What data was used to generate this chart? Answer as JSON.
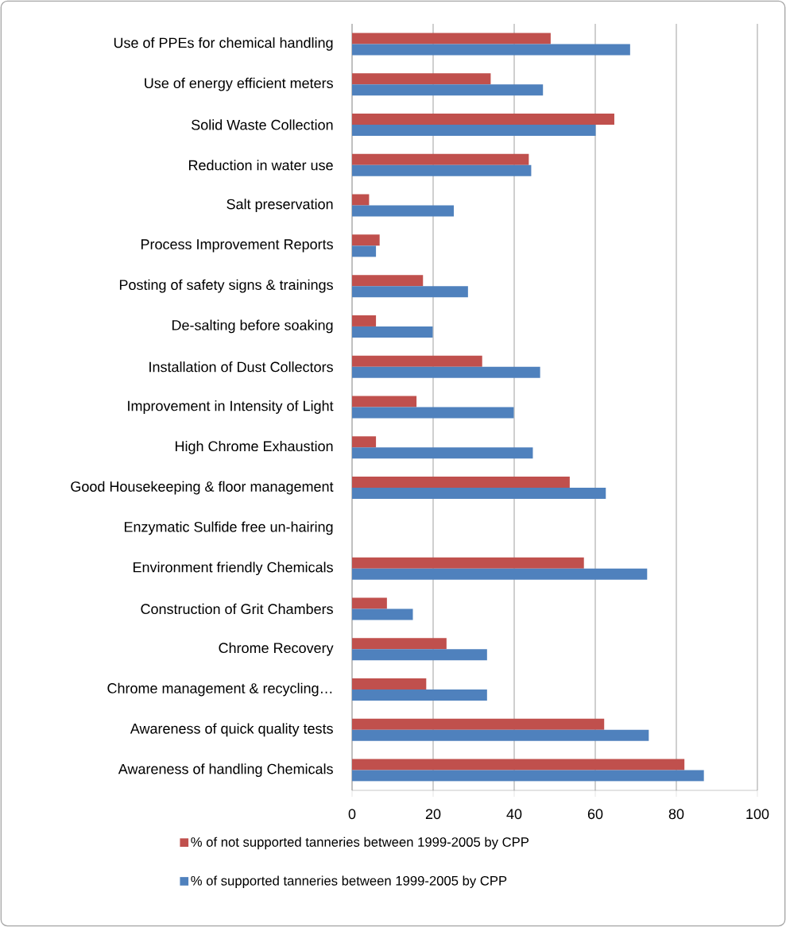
{
  "chart_data": {
    "type": "bar",
    "orientation": "horizontal",
    "categories": [
      "Use of PPEs for chemical handling",
      "Use of energy efficient meters",
      "Solid Waste Collection",
      "Reduction in water use",
      "Salt preservation",
      "Process Improvement Reports",
      "Posting of safety signs & trainings",
      "De-salting before soaking",
      "Installation of Dust Collectors",
      "Improvement in Intensity of Light",
      "High Chrome Exhaustion",
      "Good Housekeeping & floor management",
      "Enzymatic Sulfide free un-hairing",
      "Environment friendly Chemicals",
      "Construction of Grit Chambers",
      "Chrome Recovery",
      "Chrome management & recycling…",
      "Awareness of quick quality tests",
      "Awareness of handling Chemicals"
    ],
    "series": [
      {
        "name": "% of not supported tanneries between 1999-2005 by CPP",
        "color": "#c0504d",
        "values": [
          49.0,
          34.2,
          64.7,
          43.6,
          4.2,
          6.8,
          17.5,
          5.9,
          32.1,
          15.9,
          5.9,
          53.7,
          0,
          57.2,
          8.6,
          23.3,
          18.3,
          62.2,
          82.0
        ]
      },
      {
        "name": "% of supported tanneries between 1999-2005 by CPP",
        "color": "#4f81bd",
        "values": [
          68.6,
          47.1,
          60.1,
          44.2,
          25.1,
          5.9,
          28.6,
          19.9,
          46.4,
          39.9,
          44.6,
          62.6,
          0,
          72.8,
          15.0,
          33.3,
          33.3,
          73.2,
          86.8
        ]
      }
    ],
    "xlim": [
      0,
      100
    ],
    "xticks": [
      0,
      20,
      40,
      60,
      80,
      100
    ],
    "grid": "x",
    "legend": "bottom"
  }
}
